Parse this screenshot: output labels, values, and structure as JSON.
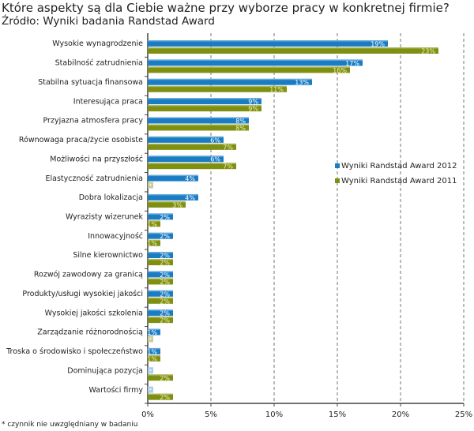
{
  "chart_data": {
    "type": "bar",
    "orientation": "horizontal",
    "title": "Które aspekty są dla Ciebie ważne przy wyborze pracy w konkretnej firmie?",
    "subtitle": "Źródło: Wyniki badania Randstad Award",
    "footnote": "* czynnik nie uwzględniany w badaniu",
    "categories": [
      "Wysokie wynagrodzenie",
      "Stabilność zatrudnienia",
      "Stabilna sytuacja finansowa",
      "Interesująca praca",
      "Przyjazna atmosfera pracy",
      "Równowaga praca/życie osobiste",
      "Możliwości na przyszłość",
      "Elastyczność zatrudnienia",
      "Dobra lokalizacja",
      "Wyrazisty wizerunek",
      "Innowacyjność",
      "Silne kierownictwo",
      "Rozwój zawodowy za granicą",
      "Produkty/usługi wysokiej jakości",
      "Wysokiej jakości szkolenia",
      "Zarządzanie różnorodnością",
      "Troska o środowisko i społeczeństwo",
      "Dominująca pozycja",
      "Wartości firmy"
    ],
    "series": [
      {
        "name": "Wyniki Randstad Award 2012",
        "color": "#1a7dc4",
        "values": [
          19,
          17,
          13,
          9,
          8,
          6,
          6,
          4,
          4,
          2,
          2,
          2,
          2,
          2,
          2,
          1,
          1,
          null,
          null
        ]
      },
      {
        "name": "Wyniki Randstad Award 2011",
        "color": "#7f8f10",
        "values": [
          23,
          16,
          11,
          9,
          8,
          7,
          7,
          null,
          3,
          1,
          1,
          2,
          2,
          2,
          2,
          null,
          1,
          2,
          2
        ]
      }
    ],
    "not_included_label": "*",
    "xlim": [
      0,
      25
    ],
    "xticks": [
      "0%",
      "5%",
      "10%",
      "15%",
      "20%",
      "25%"
    ],
    "grid": "vertical dashed",
    "legend_position": "center-right"
  }
}
